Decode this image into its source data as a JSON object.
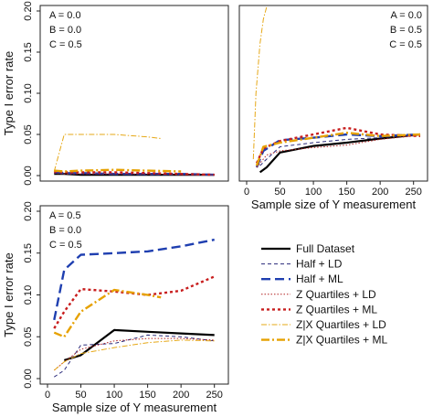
{
  "series_styles": [
    {
      "name": "Full Dataset",
      "color": "#000000",
      "width": 2.2,
      "dash": ""
    },
    {
      "name": "Half + LD",
      "color": "#2a2a7a",
      "width": 1,
      "dash": "4,3"
    },
    {
      "name": "Half + ML",
      "color": "#1f3fb0",
      "width": 2.4,
      "dash": "10,5"
    },
    {
      "name": "Z Quartiles + LD",
      "color": "#b22222",
      "width": 1,
      "dash": "1.5,2"
    },
    {
      "name": "Z Quartiles + ML",
      "color": "#c81e1e",
      "width": 2.4,
      "dash": "3,3"
    },
    {
      "name": "Z|X Quartiles + LD",
      "color": "#e6a817",
      "width": 1,
      "dash": "6,2,1.5,2"
    },
    {
      "name": "Z|X Quartiles + ML",
      "color": "#e6a100",
      "width": 2.4,
      "dash": "9,3,2,3"
    }
  ],
  "chart_data": [
    {
      "type": "line",
      "xlabel": "",
      "ylabel": "Type I error rate",
      "xlim": [
        0,
        260
      ],
      "ylim": [
        0,
        0.2
      ],
      "xticks": [],
      "yticks": [
        "0.00",
        "0.05",
        "0.10",
        "0.15",
        "0.20"
      ],
      "params": [
        "A = 0.0",
        "B = 0.0",
        "C = 0.5"
      ],
      "params_position": "top-left",
      "series": [
        {
          "name": "Full Dataset",
          "x": [
            10,
            25,
            50,
            100,
            150,
            200,
            250
          ],
          "y": [
            0.002,
            0.002,
            0.001,
            0.001,
            0.001,
            0.001,
            0.001
          ]
        },
        {
          "name": "Half + LD",
          "x": [
            10,
            25,
            50,
            100,
            150,
            200,
            250
          ],
          "y": [
            0.003,
            0.002,
            0.002,
            0.002,
            0.001,
            0.001,
            0.001
          ]
        },
        {
          "name": "Half + ML",
          "x": [
            10,
            25,
            50,
            100,
            150,
            200,
            250
          ],
          "y": [
            0.004,
            0.003,
            0.003,
            0.002,
            0.002,
            0.002,
            0.001
          ]
        },
        {
          "name": "Z Quartiles + LD",
          "x": [
            10,
            25,
            50,
            100,
            150,
            200,
            250
          ],
          "y": [
            0.003,
            0.002,
            0.002,
            0.002,
            0.002,
            0.001,
            0.001
          ]
        },
        {
          "name": "Z Quartiles + ML",
          "x": [
            10,
            25,
            50,
            100,
            150,
            200,
            250
          ],
          "y": [
            0.005,
            0.004,
            0.004,
            0.004,
            0.003,
            0.002,
            0.001
          ]
        },
        {
          "name": "Z|X Quartiles + LD",
          "x": [
            10,
            25,
            50,
            100,
            150,
            170
          ],
          "y": [
            0.005,
            0.05,
            0.05,
            0.05,
            0.047,
            0.045
          ]
        },
        {
          "name": "Z|X Quartiles + ML",
          "x": [
            10,
            25,
            50,
            100,
            150,
            200
          ],
          "y": [
            0.006,
            0.005,
            0.006,
            0.007,
            0.006,
            0.005
          ]
        }
      ]
    },
    {
      "type": "line",
      "xlabel": "Sample size of Y measurement",
      "ylabel": "",
      "xlim": [
        0,
        260
      ],
      "ylim": [
        0,
        0.2
      ],
      "xticks": [
        "0",
        "50",
        "100",
        "150",
        "200",
        "250"
      ],
      "yticks": [],
      "params": [
        "A = 0.0",
        "B = 0.5",
        "C = 0.5"
      ],
      "params_position": "top-right",
      "series": [
        {
          "name": "Full Dataset",
          "x": [
            20,
            30,
            50,
            100,
            150,
            200,
            260
          ],
          "y": [
            0.004,
            0.01,
            0.028,
            0.036,
            0.04,
            0.045,
            0.05
          ]
        },
        {
          "name": "Half + LD",
          "x": [
            20,
            30,
            50,
            100,
            150,
            200,
            260
          ],
          "y": [
            0.012,
            0.02,
            0.035,
            0.04,
            0.044,
            0.046,
            0.05
          ]
        },
        {
          "name": "Half + ML",
          "x": [
            15,
            25,
            50,
            100,
            150,
            200,
            260
          ],
          "y": [
            0.01,
            0.03,
            0.043,
            0.046,
            0.05,
            0.048,
            0.05
          ]
        },
        {
          "name": "Z Quartiles + LD",
          "x": [
            15,
            30,
            50,
            100,
            150,
            200,
            260
          ],
          "y": [
            0.01,
            0.025,
            0.03,
            0.034,
            0.037,
            0.044,
            0.049
          ]
        },
        {
          "name": "Z Quartiles + ML",
          "x": [
            15,
            25,
            50,
            100,
            150,
            200,
            260
          ],
          "y": [
            0.015,
            0.033,
            0.042,
            0.05,
            0.058,
            0.05,
            0.048
          ]
        },
        {
          "name": "Z|X Quartiles + LD",
          "x": [
            10,
            14,
            20,
            25,
            30
          ],
          "y": [
            0.02,
            0.1,
            0.16,
            0.19,
            0.205
          ]
        },
        {
          "name": "Z|X Quartiles + ML",
          "x": [
            15,
            25,
            50,
            100,
            150,
            200,
            260
          ],
          "y": [
            0.012,
            0.035,
            0.04,
            0.046,
            0.052,
            0.048,
            0.05
          ]
        }
      ]
    },
    {
      "type": "line",
      "xlabel": "Sample size of Y measurement",
      "ylabel": "Type I error rate",
      "xlim": [
        0,
        260
      ],
      "ylim": [
        0,
        0.2
      ],
      "xticks": [
        "0",
        "50",
        "100",
        "150",
        "200",
        "250"
      ],
      "yticks": [
        "0.00",
        "0.05",
        "0.10",
        "0.15",
        "0.20"
      ],
      "params": [
        "A = 0.5",
        "B = 0.0",
        "C = 0.5"
      ],
      "params_position": "top-left",
      "series": [
        {
          "name": "Full Dataset",
          "x": [
            25,
            50,
            100,
            150,
            200,
            250
          ],
          "y": [
            0.022,
            0.028,
            0.058,
            0.056,
            0.054,
            0.052
          ]
        },
        {
          "name": "Half + LD",
          "x": [
            10,
            25,
            50,
            100,
            150,
            200,
            250
          ],
          "y": [
            0.002,
            0.01,
            0.04,
            0.042,
            0.052,
            0.05,
            0.045
          ]
        },
        {
          "name": "Half + ML",
          "x": [
            10,
            25,
            50,
            100,
            150,
            200,
            250
          ],
          "y": [
            0.07,
            0.13,
            0.148,
            0.15,
            0.152,
            0.158,
            0.166
          ]
        },
        {
          "name": "Z Quartiles + LD",
          "x": [
            10,
            25,
            50,
            100,
            150,
            200,
            250
          ],
          "y": [
            0.01,
            0.02,
            0.035,
            0.045,
            0.048,
            0.048,
            0.046
          ]
        },
        {
          "name": "Z Quartiles + ML",
          "x": [
            10,
            25,
            50,
            100,
            150,
            200,
            250
          ],
          "y": [
            0.06,
            0.08,
            0.107,
            0.104,
            0.1,
            0.105,
            0.122
          ]
        },
        {
          "name": "Z|X Quartiles + LD",
          "x": [
            10,
            25,
            50,
            100,
            150,
            200,
            250
          ],
          "y": [
            0.01,
            0.02,
            0.03,
            0.037,
            0.043,
            0.046,
            0.045
          ]
        },
        {
          "name": "Z|X Quartiles + ML",
          "x": [
            10,
            25,
            50,
            100,
            150,
            170
          ],
          "y": [
            0.055,
            0.05,
            0.08,
            0.106,
            0.1,
            0.097
          ]
        }
      ]
    }
  ]
}
